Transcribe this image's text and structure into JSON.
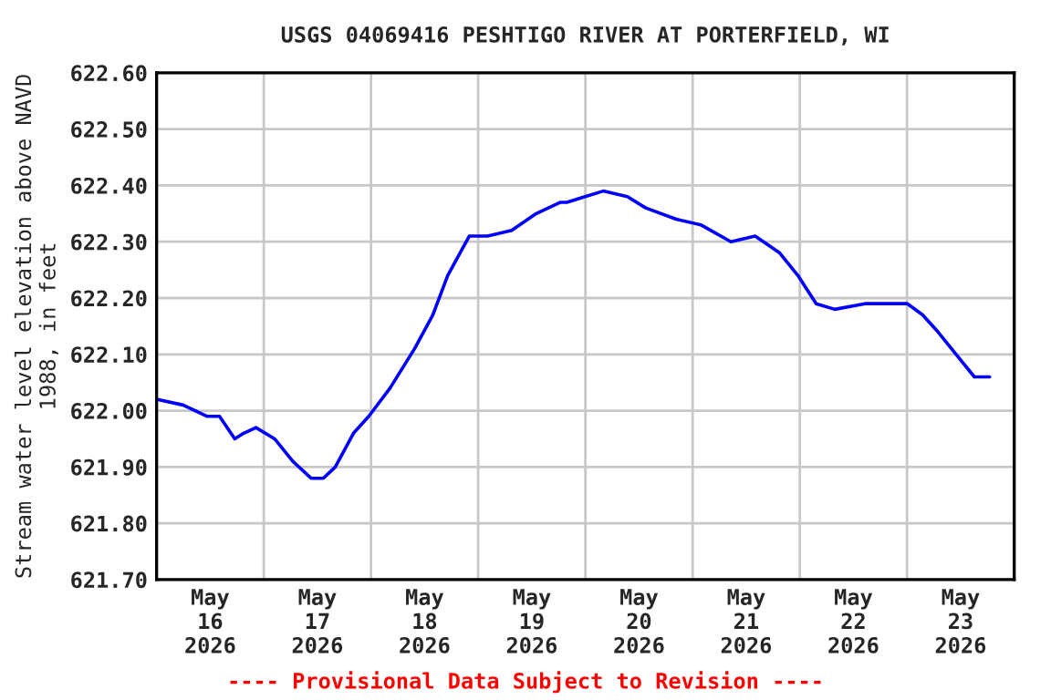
{
  "chart_data": {
    "type": "line",
    "title": "USGS 04069416 PESHTIGO RIVER AT PORTERFIELD, WI",
    "ylabel": "Stream water level elevation above NAVD\n1988, in feet",
    "annotations": [
      "---- Provisional Data Subject to Revision ----"
    ],
    "series": [
      {
        "color": "#0000ff",
        "x": [
          "2026-05-16T00:12",
          "2026-05-16T05:55",
          "2026-05-16T11:15",
          "2026-05-16T14:05",
          "2026-05-16T17:30",
          "2026-05-16T19:30",
          "2026-05-16T22:15",
          "2026-05-17T02:25",
          "2026-05-17T06:30",
          "2026-05-17T10:35",
          "2026-05-17T13:20",
          "2026-05-17T16:00",
          "2026-05-17T20:05",
          "2026-05-17T23:30",
          "2026-05-18T04:15",
          "2026-05-18T09:45",
          "2026-05-18T13:50",
          "2026-05-18T17:10",
          "2026-05-18T22:00",
          "2026-05-19T02:05",
          "2026-05-19T07:30",
          "2026-05-19T13:00",
          "2026-05-19T18:25",
          "2026-05-19T19:50",
          "2026-05-19T23:55",
          "2026-05-20T04:00",
          "2026-05-20T09:25",
          "2026-05-20T13:30",
          "2026-05-20T20:20",
          "2026-05-21T01:50",
          "2026-05-21T08:35",
          "2026-05-21T14:00",
          "2026-05-21T19:30",
          "2026-05-21T23:35",
          "2026-05-22T03:40",
          "2026-05-22T07:50",
          "2026-05-22T14:35",
          "2026-05-23T00:05",
          "2026-05-23T03:30",
          "2026-05-23T06:55",
          "2026-05-23T11:00",
          "2026-05-23T15:05",
          "2026-05-23T18:30"
        ],
        "values": [
          622.02,
          622.01,
          621.99,
          621.99,
          621.95,
          621.96,
          621.97,
          621.95,
          621.91,
          621.88,
          621.88,
          621.9,
          621.96,
          621.99,
          622.04,
          622.11,
          622.17,
          622.24,
          622.31,
          622.31,
          622.32,
          622.35,
          622.37,
          622.37,
          622.38,
          622.39,
          622.38,
          622.36,
          622.34,
          622.33,
          622.3,
          622.31,
          622.28,
          622.24,
          622.19,
          622.18,
          622.19,
          622.19,
          622.17,
          622.14,
          622.1,
          622.06,
          622.06
        ]
      }
    ],
    "xlim": [
      "2026-05-16T00:00",
      "2026-05-24T00:00"
    ],
    "xticks": [
      {
        "value": "2026-05-16T12:00",
        "label": "May\n16\n2026"
      },
      {
        "value": "2026-05-17T00:00",
        "label": null
      },
      {
        "value": "2026-05-17T12:00",
        "label": "May\n17\n2026"
      },
      {
        "value": "2026-05-18T00:00",
        "label": null
      },
      {
        "value": "2026-05-18T12:00",
        "label": "May\n18\n2026"
      },
      {
        "value": "2026-05-19T00:00",
        "label": null
      },
      {
        "value": "2026-05-19T12:00",
        "label": "May\n19\n2026"
      },
      {
        "value": "2026-05-20T00:00",
        "label": null
      },
      {
        "value": "2026-05-20T12:00",
        "label": "May\n20\n2026"
      },
      {
        "value": "2026-05-21T00:00",
        "label": null
      },
      {
        "value": "2026-05-21T12:00",
        "label": "May\n21\n2026"
      },
      {
        "value": "2026-05-22T00:00",
        "label": null
      },
      {
        "value": "2026-05-22T12:00",
        "label": "May\n22\n2026"
      },
      {
        "value": "2026-05-23T00:00",
        "label": null
      },
      {
        "value": "2026-05-23T12:00",
        "label": "May\n23\n2026"
      }
    ],
    "ylim": [
      621.7,
      622.6
    ],
    "yticks": [
      {
        "value": 621.7,
        "label": "621.70"
      },
      {
        "value": 621.8,
        "label": "621.80"
      },
      {
        "value": 621.9,
        "label": "621.90"
      },
      {
        "value": 622.0,
        "label": "622.00"
      },
      {
        "value": 622.1,
        "label": "622.10"
      },
      {
        "value": 622.2,
        "label": "622.20"
      },
      {
        "value": 622.3,
        "label": "622.30"
      },
      {
        "value": 622.4,
        "label": "622.40"
      },
      {
        "value": 622.5,
        "label": "622.50"
      },
      {
        "value": 622.6,
        "label": "622.60"
      }
    ],
    "grid": "x_y_null_ticks",
    "marker": "none",
    "line_style": "solid"
  }
}
